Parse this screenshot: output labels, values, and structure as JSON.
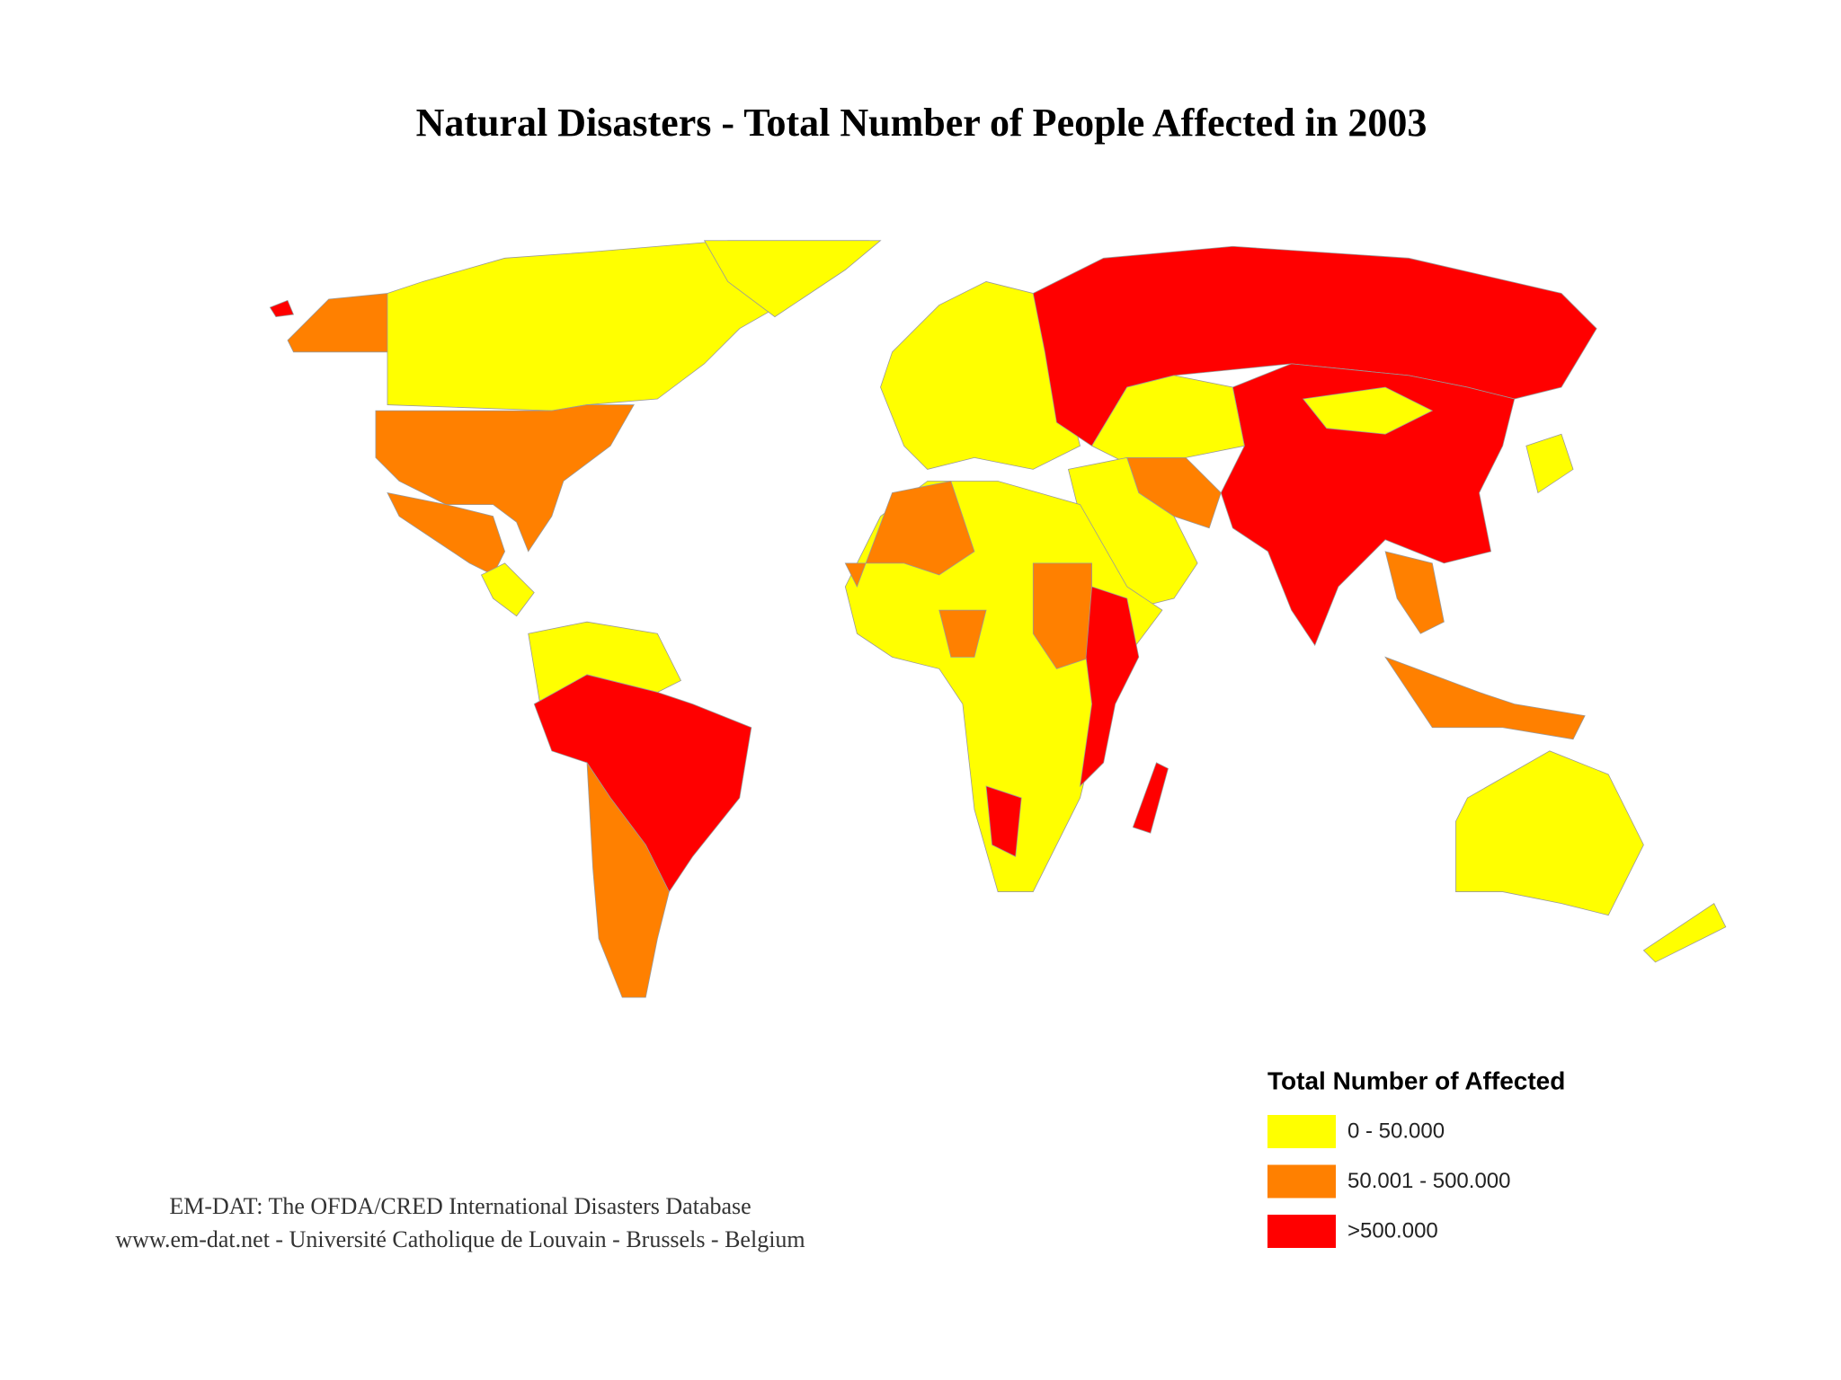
{
  "title": "Natural Disasters - Total Number of People Affected in 2003",
  "legend": {
    "title": "Total Number of Affected",
    "items": [
      {
        "label": "0 - 50.000",
        "color": "#ffff00"
      },
      {
        "label": "50.001 - 500.000",
        "color": "#ff8000"
      },
      {
        "label": ">500.000",
        "color": "#ff0000"
      }
    ]
  },
  "source": [
    "EM-DAT: The OFDA/CRED International Disasters Database",
    "www.em-dat.net - Université Catholique de Louvain - Brussels - Belgium"
  ]
}
